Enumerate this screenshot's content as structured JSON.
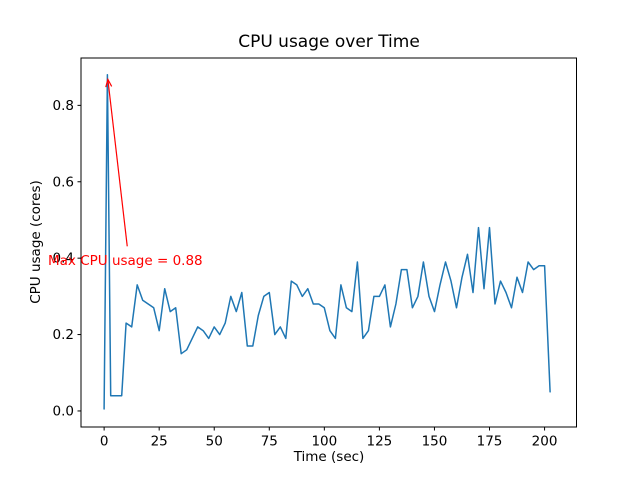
{
  "chart_data": {
    "type": "line",
    "title": "CPU usage over Time",
    "xlabel": "Time (sec)",
    "ylabel": "CPU usage (cores)",
    "grid": false,
    "legend_position": "none",
    "line_color": "#1f77b4",
    "axis_color": "#000000",
    "background_color": "#ffffff",
    "xlim": [
      -10.5,
      214.5
    ],
    "ylim": [
      -0.042,
      0.924
    ],
    "xticks": {
      "values": [
        0,
        25,
        50,
        75,
        100,
        125,
        150,
        175,
        200
      ],
      "labels": [
        "0",
        "25",
        "50",
        "75",
        "100",
        "125",
        "150",
        "175",
        "200"
      ]
    },
    "yticks": {
      "values": [
        0.0,
        0.2,
        0.4,
        0.6,
        0.8
      ],
      "labels": [
        "0.0",
        "0.2",
        "0.4",
        "0.6",
        "0.8"
      ]
    },
    "x": [
      0,
      1.5,
      3,
      5.5,
      8,
      10,
      12.5,
      15,
      17.5,
      20,
      22.5,
      25,
      27.5,
      30,
      32.5,
      35,
      37.5,
      40,
      42.5,
      45,
      47.5,
      50,
      52.5,
      55,
      57.5,
      60,
      62.5,
      65,
      67.5,
      70,
      72.5,
      75,
      77.5,
      80,
      82.5,
      85,
      87.5,
      90,
      92.5,
      95,
      97.5,
      100,
      102.5,
      105,
      107.5,
      110,
      112.5,
      115,
      117.5,
      120,
      122.5,
      125,
      127.5,
      130,
      132.5,
      135,
      137.5,
      140,
      142.5,
      145,
      147.5,
      150,
      152.5,
      155,
      157.5,
      160,
      162.5,
      165,
      167.5,
      170,
      172.5,
      175,
      177.5,
      180,
      182.5,
      185,
      187.5,
      190,
      192.5,
      195,
      197.5,
      200,
      202.5
    ],
    "y": [
      0.005,
      0.88,
      0.04,
      0.04,
      0.04,
      0.23,
      0.22,
      0.33,
      0.29,
      0.28,
      0.27,
      0.21,
      0.32,
      0.26,
      0.27,
      0.15,
      0.16,
      0.19,
      0.22,
      0.21,
      0.19,
      0.22,
      0.2,
      0.23,
      0.3,
      0.26,
      0.31,
      0.17,
      0.17,
      0.25,
      0.3,
      0.31,
      0.2,
      0.22,
      0.19,
      0.34,
      0.33,
      0.3,
      0.32,
      0.28,
      0.28,
      0.27,
      0.21,
      0.19,
      0.33,
      0.27,
      0.26,
      0.39,
      0.19,
      0.21,
      0.3,
      0.3,
      0.33,
      0.22,
      0.28,
      0.37,
      0.37,
      0.27,
      0.3,
      0.39,
      0.3,
      0.26,
      0.33,
      0.39,
      0.34,
      0.27,
      0.35,
      0.41,
      0.31,
      0.48,
      0.32,
      0.48,
      0.28,
      0.34,
      0.31,
      0.27,
      0.35,
      0.31,
      0.39,
      0.37,
      0.38,
      0.38,
      0.05
    ],
    "annotation": {
      "text": "Max CPU usage = 0.88",
      "color": "#ff0000",
      "max_value": 0.88,
      "text_xy": [
        -25.3,
        0.387
      ],
      "arrow_tail_xy": [
        10.5,
        0.431
      ],
      "arrow_head_xy": [
        1.7,
        0.868
      ]
    }
  }
}
